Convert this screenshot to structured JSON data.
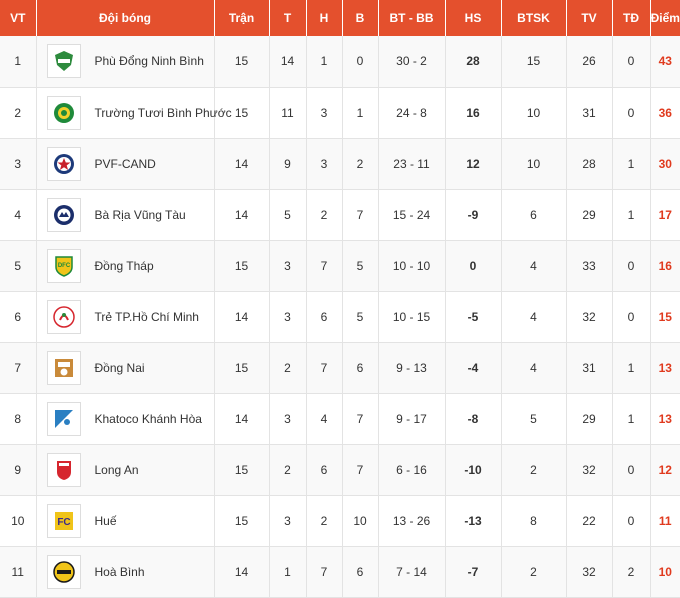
{
  "headers": {
    "vt": "VT",
    "club": "Đội bóng",
    "played": "Trận",
    "won": "T",
    "drawn": "H",
    "lost": "B",
    "goals": "BT - BB",
    "diff": "HS",
    "away_goals": "BTSK",
    "yellow": "TV",
    "red": "TĐ",
    "points": "Điểm"
  },
  "rows": [
    {
      "vt": "1",
      "club": "Phù Đổng Ninh Bình",
      "logo_icon": "phu-dong-ninh-binh-logo-icon",
      "played": "15",
      "won": "14",
      "drawn": "1",
      "lost": "0",
      "goals": "30 - 2",
      "diff": "28",
      "away_goals": "15",
      "yellow": "26",
      "red": "0",
      "points": "43"
    },
    {
      "vt": "2",
      "club": "Trường Tươi Bình Phước",
      "logo_icon": "truong-tuoi-binh-phuoc-logo-icon",
      "played": "15",
      "won": "11",
      "drawn": "3",
      "lost": "1",
      "goals": "24 - 8",
      "diff": "16",
      "away_goals": "10",
      "yellow": "31",
      "red": "0",
      "points": "36"
    },
    {
      "vt": "3",
      "club": "PVF-CAND",
      "logo_icon": "pvf-cand-logo-icon",
      "played": "14",
      "won": "9",
      "drawn": "3",
      "lost": "2",
      "goals": "23 - 11",
      "diff": "12",
      "away_goals": "10",
      "yellow": "28",
      "red": "1",
      "points": "30"
    },
    {
      "vt": "4",
      "club": "Bà Rịa Vũng Tàu",
      "logo_icon": "ba-ria-vung-tau-logo-icon",
      "played": "14",
      "won": "5",
      "drawn": "2",
      "lost": "7",
      "goals": "15 - 24",
      "diff": "-9",
      "away_goals": "6",
      "yellow": "29",
      "red": "1",
      "points": "17"
    },
    {
      "vt": "5",
      "club": "Đồng Tháp",
      "logo_icon": "dong-thap-logo-icon",
      "played": "15",
      "won": "3",
      "drawn": "7",
      "lost": "5",
      "goals": "10 - 10",
      "diff": "0",
      "away_goals": "4",
      "yellow": "33",
      "red": "0",
      "points": "16"
    },
    {
      "vt": "6",
      "club": "Trẻ TP.Hồ Chí Minh",
      "logo_icon": "tre-tp-ho-chi-minh-logo-icon",
      "played": "14",
      "won": "3",
      "drawn": "6",
      "lost": "5",
      "goals": "10 - 15",
      "diff": "-5",
      "away_goals": "4",
      "yellow": "32",
      "red": "0",
      "points": "15"
    },
    {
      "vt": "7",
      "club": "Đồng Nai",
      "logo_icon": "dong-nai-logo-icon",
      "played": "15",
      "won": "2",
      "drawn": "7",
      "lost": "6",
      "goals": "9 - 13",
      "diff": "-4",
      "away_goals": "4",
      "yellow": "31",
      "red": "1",
      "points": "13"
    },
    {
      "vt": "8",
      "club": "Khatoco Khánh Hòa",
      "logo_icon": "khatoco-khanh-hoa-logo-icon",
      "played": "14",
      "won": "3",
      "drawn": "4",
      "lost": "7",
      "goals": "9 - 17",
      "diff": "-8",
      "away_goals": "5",
      "yellow": "29",
      "red": "1",
      "points": "13"
    },
    {
      "vt": "9",
      "club": "Long An",
      "logo_icon": "long-an-logo-icon",
      "played": "15",
      "won": "2",
      "drawn": "6",
      "lost": "7",
      "goals": "6 - 16",
      "diff": "-10",
      "away_goals": "2",
      "yellow": "32",
      "red": "0",
      "points": "12"
    },
    {
      "vt": "10",
      "club": "Huế",
      "logo_icon": "hue-logo-icon",
      "played": "15",
      "won": "3",
      "drawn": "2",
      "lost": "10",
      "goals": "13 - 26",
      "diff": "-13",
      "away_goals": "8",
      "yellow": "22",
      "red": "0",
      "points": "11"
    },
    {
      "vt": "11",
      "club": "Hoà Bình",
      "logo_icon": "hoa-binh-logo-icon",
      "played": "14",
      "won": "1",
      "drawn": "7",
      "lost": "6",
      "goals": "7 - 14",
      "diff": "-7",
      "away_goals": "2",
      "yellow": "32",
      "red": "2",
      "points": "10"
    }
  ],
  "colors": {
    "header_bg": "#e4502d",
    "header_text": "#ffffff",
    "points_text": "#e03a1e",
    "row_alt_bg": "#f9f9f9",
    "border": "#e3e3e3"
  }
}
